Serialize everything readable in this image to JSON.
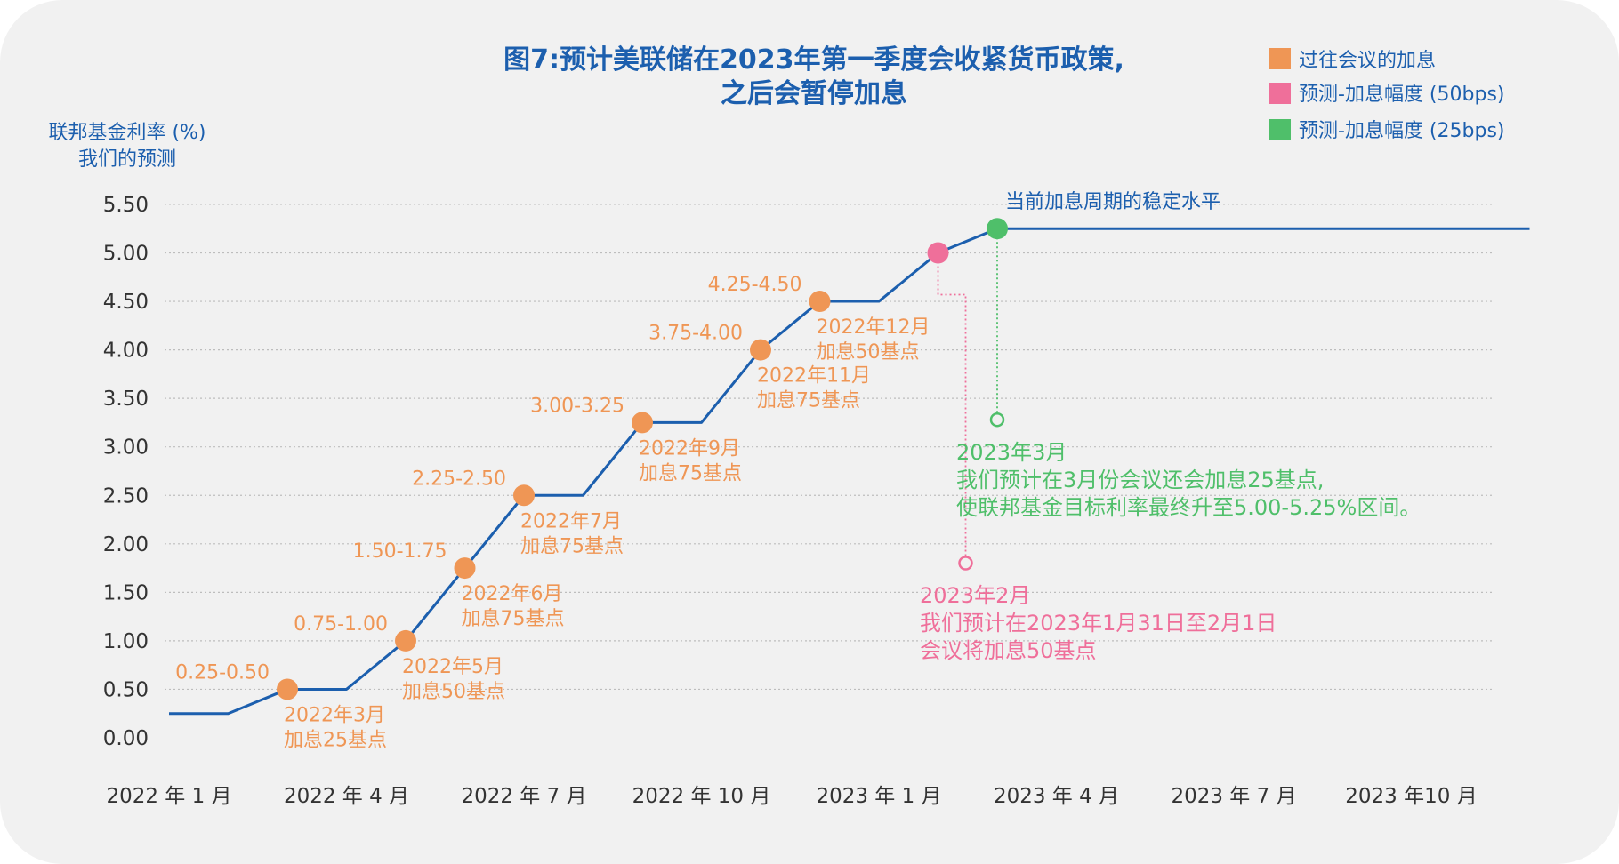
{
  "chart_data": {
    "type": "line",
    "title": [
      "图7:预计美联储在2023年第一季度会收紧货币政策,",
      "之后会暂停加息"
    ],
    "ylabel": [
      "联邦基金利率 (%)",
      "我们的预测"
    ],
    "ylim": [
      0,
      5.5
    ],
    "yticks": [
      "0.00",
      "0.50",
      "1.00",
      "1.50",
      "2.00",
      "2.50",
      "3.00",
      "3.50",
      "4.00",
      "4.50",
      "5.00",
      "5.50"
    ],
    "xticks": [
      "2022 年 1 月",
      "2022 年 4 月",
      "2022 年 7 月",
      "2022 年 10 月",
      "2023 年 1 月",
      "2023 年 4 月",
      "2023 年 7 月",
      "2023 年10 月"
    ],
    "legend": {
      "placement": "top-right",
      "items": [
        {
          "label": "过往会议的加息",
          "color": "#ef9655"
        },
        {
          "label": "预测-加息幅度 (50bps)",
          "color": "#ef6f9a"
        },
        {
          "label": "预测-加息幅度 (25bps)",
          "color": "#4fbf6a"
        }
      ]
    },
    "line_color": "#1c5fae",
    "series": [
      {
        "values": [
          {
            "x": "2022-01",
            "y": 0.25
          },
          {
            "x": "2022-02",
            "y": 0.25
          },
          {
            "x": "2022-03",
            "y": 0.5
          },
          {
            "x": "2022-04",
            "y": 0.5
          },
          {
            "x": "2022-05",
            "y": 1.0
          },
          {
            "x": "2022-06",
            "y": 1.75
          },
          {
            "x": "2022-07",
            "y": 2.5
          },
          {
            "x": "2022-08",
            "y": 2.5
          },
          {
            "x": "2022-09",
            "y": 3.25
          },
          {
            "x": "2022-10",
            "y": 3.25
          },
          {
            "x": "2022-11",
            "y": 4.0
          },
          {
            "x": "2022-12",
            "y": 4.5
          },
          {
            "x": "2023-01",
            "y": 4.5
          },
          {
            "x": "2023-02",
            "y": 5.0
          },
          {
            "x": "2023-03",
            "y": 5.25
          },
          {
            "x": "2023-12",
            "y": 5.25
          }
        ]
      }
    ],
    "past_hikes": [
      {
        "x": "2022-03",
        "y": 0.5,
        "range": "0.25-0.50",
        "label": [
          "2022年3月",
          "加息25基点"
        ]
      },
      {
        "x": "2022-05",
        "y": 1.0,
        "range": "0.75-1.00",
        "label": [
          "2022年5月",
          "加息50基点"
        ]
      },
      {
        "x": "2022-06",
        "y": 1.75,
        "range": "1.50-1.75",
        "label": [
          "2022年6月",
          "加息75基点"
        ]
      },
      {
        "x": "2022-07",
        "y": 2.5,
        "range": "2.25-2.50",
        "label": [
          "2022年7月",
          "加息75基点"
        ]
      },
      {
        "x": "2022-09",
        "y": 3.25,
        "range": "3.00-3.25",
        "label": [
          "2022年9月",
          "加息75基点"
        ]
      },
      {
        "x": "2022-11",
        "y": 4.0,
        "range": "3.75-4.00",
        "label": [
          "2022年11月",
          "加息75基点"
        ]
      },
      {
        "x": "2022-12",
        "y": 4.5,
        "range": "4.25-4.50",
        "label": [
          "2022年12月",
          "加息50基点"
        ]
      }
    ],
    "forecast_50": {
      "x": "2023-02",
      "y": 5.0,
      "note": [
        "2023年2月",
        "我们预计在2023年1月31日至2月1日",
        "会议将加息50基点"
      ]
    },
    "forecast_25": {
      "x": "2023-03",
      "y": 5.25,
      "note": [
        "2023年3月",
        "我们预计在3月份会议还会加息25基点,",
        "使联邦基金目标利率最终升至5.00-5.25%区间。"
      ]
    },
    "stable_label": "当前加息周期的稳定水平",
    "grid": "dotted-horizontal"
  }
}
